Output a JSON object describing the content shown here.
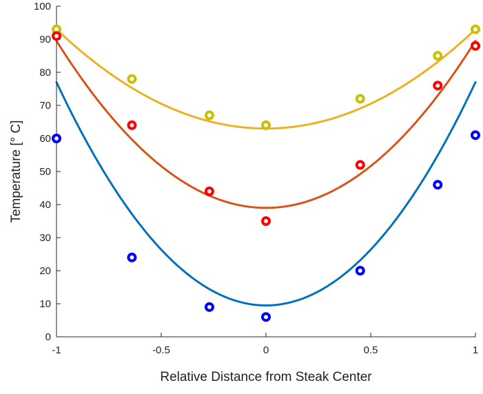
{
  "chart_data": {
    "type": "scatter",
    "title": "",
    "xlabel": "Relative Distance from Steak Center",
    "ylabel": "Temperature [° C]",
    "xlim": [
      -1,
      1
    ],
    "ylim": [
      0,
      100
    ],
    "xticks": [
      -1,
      -0.5,
      0,
      0.5,
      1
    ],
    "xtick_labels": [
      "-1",
      "-0.5",
      "0",
      "0.5",
      "1"
    ],
    "yticks": [
      0,
      10,
      20,
      30,
      40,
      50,
      60,
      70,
      80,
      90,
      100
    ],
    "ytick_labels": [
      "0",
      "10",
      "20",
      "30",
      "40",
      "50",
      "60",
      "70",
      "80",
      "90",
      "100"
    ],
    "grid": false,
    "legend": "none",
    "series": [
      {
        "marker_color": "#c8c000",
        "line_color": "#edb120",
        "points": {
          "x": [
            -1,
            -0.64,
            -0.27,
            0,
            0.45,
            0.82,
            1
          ],
          "y": [
            93,
            78,
            67,
            64,
            72,
            85,
            93
          ]
        },
        "fit": {
          "type": "quadratic",
          "coefficients": [
            30,
            0,
            63
          ]
        }
      },
      {
        "marker_color": "#ff0000",
        "line_color": "#d95319",
        "points": {
          "x": [
            -1,
            -0.64,
            -0.27,
            0,
            0.45,
            0.82,
            1
          ],
          "y": [
            91,
            64,
            44,
            35,
            52,
            76,
            88
          ]
        },
        "fit": {
          "type": "quadratic",
          "coefficients": [
            50.5,
            0,
            39
          ]
        }
      },
      {
        "marker_color": "#0000ff",
        "line_color": "#0072bd",
        "points": {
          "x": [
            -1,
            -0.64,
            -0.27,
            0,
            0.45,
            0.82,
            1
          ],
          "y": [
            60,
            24,
            9,
            6,
            20,
            46,
            61
          ]
        },
        "fit": {
          "type": "quadratic",
          "coefficients": [
            67.5,
            0,
            9.5
          ]
        }
      }
    ]
  }
}
